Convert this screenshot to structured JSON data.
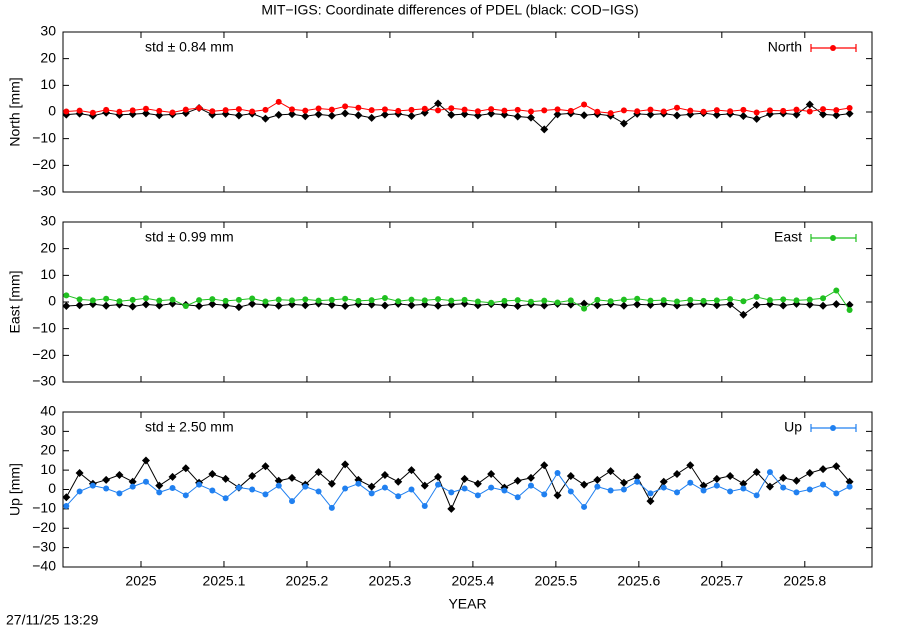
{
  "title": "MIT−IGS: Coordinate differences of PDEL (black: COD−IGS)",
  "timestamp": "27/11/25 13:29",
  "chart_data": [
    {
      "type": "line",
      "ylabel": "North [mm]",
      "annotation": "std ± 0.84 mm",
      "legend": "upper right",
      "xlim": [
        2024.906,
        2025.881
      ],
      "xticks": [
        2025,
        2025.1,
        2025.2,
        2025.3,
        2025.4,
        2025.5,
        2025.6,
        2025.7,
        2025.8
      ],
      "ylim": [
        -30,
        30
      ],
      "yticks": [
        {
          "value": -30,
          "label": "−30"
        },
        {
          "value": -20,
          "label": "−20"
        },
        {
          "value": -10,
          "label": "−10"
        },
        0,
        10,
        20,
        30
      ],
      "x": [
        2024.91,
        2024.926,
        2024.942,
        2024.958,
        2024.974,
        2024.99,
        2025.006,
        2025.022,
        2025.038,
        2025.054,
        2025.07,
        2025.086,
        2025.102,
        2025.118,
        2025.134,
        2025.15,
        2025.166,
        2025.182,
        2025.198,
        2025.214,
        2025.23,
        2025.246,
        2025.262,
        2025.278,
        2025.294,
        2025.31,
        2025.326,
        2025.342,
        2025.358,
        2025.374,
        2025.39,
        2025.406,
        2025.422,
        2025.438,
        2025.454,
        2025.47,
        2025.486,
        2025.502,
        2025.518,
        2025.534,
        2025.55,
        2025.566,
        2025.582,
        2025.598,
        2025.614,
        2025.63,
        2025.646,
        2025.662,
        2025.678,
        2025.694,
        2025.71,
        2025.726,
        2025.742,
        2025.758,
        2025.774,
        2025.79,
        2025.806,
        2025.822,
        2025.838,
        2025.854
      ],
      "series": [
        {
          "color": "#000000",
          "values": [
            -1.0,
            -0.6,
            -1.4,
            -0.3,
            -1.1,
            -0.8,
            -0.5,
            -1.2,
            -0.9,
            -0.4,
            1.5,
            -1.0,
            -0.7,
            -1.3,
            -0.6,
            -2.5,
            -1.1,
            -0.8,
            -1.6,
            -0.9,
            -1.4,
            -0.5,
            -1.2,
            -2.2,
            -1.0,
            -0.7,
            -1.5,
            -0.3,
            3.2,
            -1.1,
            -0.8,
            -1.3,
            -0.6,
            -1.0,
            -1.7,
            -2.1,
            -6.5,
            -0.9,
            -0.5,
            -1.2,
            -0.8,
            -1.4,
            -4.3,
            -0.7,
            -1.0,
            -0.6,
            -1.3,
            -0.9,
            -0.4,
            -1.1,
            -0.7,
            -1.5,
            -2.6,
            -0.8,
            -0.5,
            -1.0,
            2.8,
            -0.9,
            -1.2,
            -0.6
          ]
        },
        {
          "name": "North",
          "color": "#ff0000",
          "values": [
            0.2,
            0.5,
            -0.3,
            0.8,
            0.1,
            0.6,
            1.2,
            0.4,
            -0.2,
            0.9,
            1.5,
            0.3,
            0.7,
            1.1,
            0.2,
            0.8,
            3.8,
            1.0,
            0.5,
            1.3,
            0.9,
            2.1,
            1.6,
            0.7,
            1.0,
            0.4,
            0.8,
            1.2,
            0.6,
            1.4,
            0.9,
            0.3,
            1.1,
            0.5,
            0.8,
            0.2,
            0.6,
            1.0,
            0.4,
            2.8,
            0.1,
            -0.4,
            0.6,
            0.3,
            0.9,
            0.2,
            1.6,
            0.5,
            0.1,
            0.7,
            0.3,
            0.8,
            -0.2,
            0.6,
            0.4,
            0.9,
            0.2,
            1.1,
            0.7,
            1.5
          ]
        }
      ]
    },
    {
      "type": "line",
      "ylabel": "East [mm]",
      "annotation": "std ± 0.99 mm",
      "legend": "upper right",
      "xlim": [
        2024.906,
        2025.881
      ],
      "xticks": [
        2025,
        2025.1,
        2025.2,
        2025.3,
        2025.4,
        2025.5,
        2025.6,
        2025.7,
        2025.8
      ],
      "ylim": [
        -30,
        30
      ],
      "yticks": [
        {
          "value": -30,
          "label": "−30"
        },
        {
          "value": -20,
          "label": "−20"
        },
        {
          "value": -10,
          "label": "−10"
        },
        0,
        10,
        20,
        30
      ],
      "x": [
        2024.91,
        2024.926,
        2024.942,
        2024.958,
        2024.974,
        2024.99,
        2025.006,
        2025.022,
        2025.038,
        2025.054,
        2025.07,
        2025.086,
        2025.102,
        2025.118,
        2025.134,
        2025.15,
        2025.166,
        2025.182,
        2025.198,
        2025.214,
        2025.23,
        2025.246,
        2025.262,
        2025.278,
        2025.294,
        2025.31,
        2025.326,
        2025.342,
        2025.358,
        2025.374,
        2025.39,
        2025.406,
        2025.422,
        2025.438,
        2025.454,
        2025.47,
        2025.486,
        2025.502,
        2025.518,
        2025.534,
        2025.55,
        2025.566,
        2025.582,
        2025.598,
        2025.614,
        2025.63,
        2025.646,
        2025.662,
        2025.678,
        2025.694,
        2025.71,
        2025.726,
        2025.742,
        2025.758,
        2025.774,
        2025.79,
        2025.806,
        2025.822,
        2025.838,
        2025.854
      ],
      "series": [
        {
          "color": "#000000",
          "values": [
            -1.5,
            -1.2,
            -0.8,
            -1.4,
            -1.0,
            -1.7,
            -0.9,
            -1.3,
            -0.6,
            -1.1,
            -1.5,
            -0.8,
            -1.2,
            -1.9,
            -0.7,
            -1.0,
            -1.4,
            -0.9,
            -1.2,
            -0.6,
            -1.1,
            -1.5,
            -0.8,
            -1.0,
            -1.3,
            -0.7,
            -1.2,
            -0.9,
            -1.4,
            -1.0,
            -0.6,
            -1.2,
            -0.8,
            -1.1,
            -1.5,
            -0.9,
            -1.3,
            -0.7,
            -1.0,
            -0.6,
            -1.2,
            -0.8,
            -1.4,
            -0.9,
            -1.1,
            -0.7,
            -1.3,
            -1.0,
            -0.6,
            -1.2,
            -0.9,
            -4.8,
            -1.1,
            -0.8,
            -1.3,
            -0.7,
            -1.0,
            -1.4,
            -0.8,
            -1.1
          ]
        },
        {
          "name": "East",
          "color": "#20c020",
          "values": [
            2.5,
            1.0,
            0.6,
            1.2,
            0.3,
            0.8,
            1.4,
            0.5,
            0.9,
            -1.5,
            0.7,
            1.1,
            0.4,
            0.8,
            1.3,
            0.2,
            0.9,
            0.6,
            1.0,
            0.5,
            0.8,
            1.2,
            0.4,
            0.7,
            1.5,
            0.3,
            0.9,
            0.6,
            1.1,
            0.5,
            0.8,
            0.2,
            -0.3,
            0.4,
            0.7,
            0.1,
            0.5,
            -0.2,
            0.6,
            -2.5,
            0.8,
            0.3,
            0.9,
            1.2,
            0.5,
            0.7,
            0.2,
            0.8,
            0.4,
            0.6,
            1.1,
            0.3,
            1.9,
            0.7,
            1.0,
            0.6,
            0.9,
            1.4,
            4.3,
            -3.0
          ]
        }
      ]
    },
    {
      "type": "line",
      "ylabel": "Up [mm]",
      "xlabel": "YEAR",
      "annotation": "std ± 2.50 mm",
      "legend": "upper right",
      "xlim": [
        2024.906,
        2025.881
      ],
      "xticks": [
        2025,
        2025.1,
        2025.2,
        2025.3,
        2025.4,
        2025.5,
        2025.6,
        2025.7,
        2025.8
      ],
      "ylim": [
        -40,
        40
      ],
      "yticks": [
        {
          "value": -40,
          "label": "−40"
        },
        {
          "value": -30,
          "label": "−30"
        },
        {
          "value": -20,
          "label": "−20"
        },
        {
          "value": -10,
          "label": "−10"
        },
        0,
        10,
        20,
        30,
        40
      ],
      "x": [
        2024.91,
        2024.926,
        2024.942,
        2024.958,
        2024.974,
        2024.99,
        2025.006,
        2025.022,
        2025.038,
        2025.054,
        2025.07,
        2025.086,
        2025.102,
        2025.118,
        2025.134,
        2025.15,
        2025.166,
        2025.182,
        2025.198,
        2025.214,
        2025.23,
        2025.246,
        2025.262,
        2025.278,
        2025.294,
        2025.31,
        2025.326,
        2025.342,
        2025.358,
        2025.374,
        2025.39,
        2025.406,
        2025.422,
        2025.438,
        2025.454,
        2025.47,
        2025.486,
        2025.502,
        2025.518,
        2025.534,
        2025.55,
        2025.566,
        2025.582,
        2025.598,
        2025.614,
        2025.63,
        2025.646,
        2025.662,
        2025.678,
        2025.694,
        2025.71,
        2025.726,
        2025.742,
        2025.758,
        2025.774,
        2025.79,
        2025.806,
        2025.822,
        2025.838,
        2025.854
      ],
      "series": [
        {
          "color": "#000000",
          "values": [
            -4.0,
            8.5,
            3.0,
            5.0,
            7.5,
            4.0,
            15.0,
            2.0,
            6.5,
            11.0,
            3.5,
            8.0,
            5.5,
            1.0,
            7.0,
            12.0,
            4.5,
            6.0,
            2.5,
            9.0,
            3.0,
            13.0,
            5.0,
            1.5,
            7.5,
            4.0,
            10.0,
            2.0,
            6.5,
            -10.0,
            5.5,
            3.0,
            8.0,
            1.0,
            4.5,
            6.0,
            12.5,
            -3.0,
            7.0,
            2.5,
            5.0,
            9.5,
            3.5,
            6.5,
            -6.0,
            4.0,
            8.0,
            12.5,
            2.0,
            5.5,
            7.0,
            3.0,
            9.0,
            1.5,
            6.0,
            4.5,
            8.5,
            10.5,
            12.0,
            4.0
          ]
        },
        {
          "name": "Up",
          "color": "#2080f0",
          "values": [
            -8.5,
            -1.0,
            2.0,
            0.5,
            -2.0,
            1.5,
            4.0,
            -1.5,
            0.8,
            -3.0,
            2.5,
            -0.5,
            -4.5,
            1.0,
            0.0,
            -2.5,
            2.0,
            -6.0,
            1.5,
            -1.0,
            -9.5,
            0.5,
            3.0,
            -2.0,
            1.0,
            -3.5,
            0.0,
            -8.5,
            2.5,
            -1.5,
            0.5,
            -3.0,
            1.0,
            -0.5,
            -4.0,
            2.0,
            -2.5,
            8.5,
            -1.0,
            -9.0,
            1.5,
            -0.5,
            0.0,
            4.0,
            -2.0,
            1.0,
            -1.5,
            3.5,
            -0.5,
            2.0,
            -1.0,
            0.5,
            -3.0,
            9.0,
            1.0,
            -1.5,
            0.0,
            2.5,
            -2.0,
            1.5
          ]
        }
      ]
    }
  ]
}
